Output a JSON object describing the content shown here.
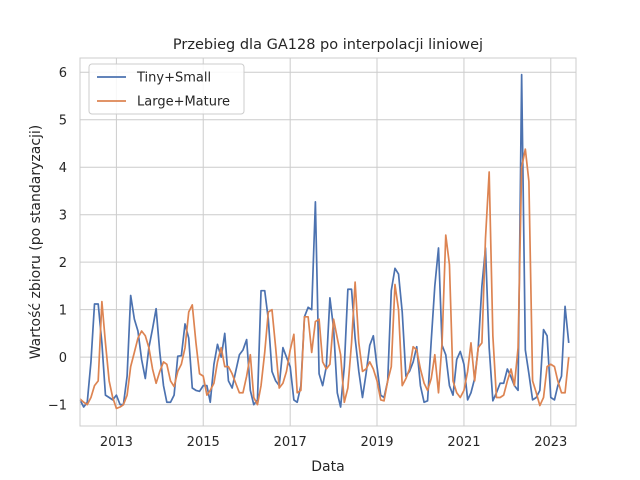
{
  "chart_data": {
    "type": "line",
    "title": "Przebieg dla GA128 po interpolacji liniowej",
    "xlabel": "Data",
    "ylabel": "Wartość zbioru (po standaryzacji)",
    "xlim": [
      "2012-03-01",
      "2023-08-01"
    ],
    "ylim": [
      -1.45,
      6.3
    ],
    "xticks": [
      {
        "value": "2013-01-01",
        "label": "2013"
      },
      {
        "value": "2015-01-01",
        "label": "2015"
      },
      {
        "value": "2017-01-01",
        "label": "2017"
      },
      {
        "value": "2019-01-01",
        "label": "2019"
      },
      {
        "value": "2021-01-01",
        "label": "2021"
      },
      {
        "value": "2023-01-01",
        "label": "2023"
      }
    ],
    "yticks": [
      -1,
      0,
      1,
      2,
      3,
      4,
      5,
      6
    ],
    "grid": true,
    "legend_position": "upper left",
    "series": [
      {
        "name": "Tiny+Small",
        "color": "#4c72b0",
        "points": [
          [
            "2012-03-01",
            -0.9
          ],
          [
            "2012-04-01",
            -1.05
          ],
          [
            "2012-05-01",
            -0.95
          ],
          [
            "2012-06-01",
            -0.1
          ],
          [
            "2012-07-01",
            1.12
          ],
          [
            "2012-08-01",
            1.12
          ],
          [
            "2012-09-01",
            0.3
          ],
          [
            "2012-10-01",
            -0.8
          ],
          [
            "2012-11-01",
            -0.85
          ],
          [
            "2012-12-01",
            -0.9
          ],
          [
            "2013-01-01",
            -0.8
          ],
          [
            "2013-02-01",
            -1.0
          ],
          [
            "2013-03-01",
            -1.0
          ],
          [
            "2013-04-01",
            -0.4
          ],
          [
            "2013-05-01",
            1.3
          ],
          [
            "2013-06-01",
            0.8
          ],
          [
            "2013-07-01",
            0.55
          ],
          [
            "2013-08-01",
            -0.05
          ],
          [
            "2013-09-01",
            -0.45
          ],
          [
            "2013-10-01",
            0.2
          ],
          [
            "2013-11-01",
            0.6
          ],
          [
            "2013-12-01",
            1.02
          ],
          [
            "2014-01-01",
            0.1
          ],
          [
            "2014-02-01",
            -0.6
          ],
          [
            "2014-03-01",
            -0.95
          ],
          [
            "2014-04-01",
            -0.95
          ],
          [
            "2014-05-01",
            -0.8
          ],
          [
            "2014-06-01",
            0.02
          ],
          [
            "2014-07-01",
            0.03
          ],
          [
            "2014-08-01",
            0.7
          ],
          [
            "2014-09-01",
            0.4
          ],
          [
            "2014-10-01",
            -0.65
          ],
          [
            "2014-11-01",
            -0.7
          ],
          [
            "2014-12-01",
            -0.72
          ],
          [
            "2015-01-01",
            -0.6
          ],
          [
            "2015-02-01",
            -0.6
          ],
          [
            "2015-03-01",
            -0.95
          ],
          [
            "2015-04-01",
            -0.15
          ],
          [
            "2015-05-01",
            0.27
          ],
          [
            "2015-06-01",
            0.0
          ],
          [
            "2015-07-01",
            0.5
          ],
          [
            "2015-08-01",
            -0.5
          ],
          [
            "2015-09-01",
            -0.65
          ],
          [
            "2015-10-01",
            -0.3
          ],
          [
            "2015-11-01",
            0.05
          ],
          [
            "2015-12-01",
            0.15
          ],
          [
            "2016-01-01",
            0.37
          ],
          [
            "2016-02-01",
            -0.7
          ],
          [
            "2016-03-01",
            -1.0
          ],
          [
            "2016-04-01",
            -0.9
          ],
          [
            "2016-05-01",
            1.4
          ],
          [
            "2016-06-01",
            1.4
          ],
          [
            "2016-07-01",
            0.8
          ],
          [
            "2016-08-01",
            -0.3
          ],
          [
            "2016-09-01",
            -0.5
          ],
          [
            "2016-10-01",
            -0.6
          ],
          [
            "2016-11-01",
            0.2
          ],
          [
            "2016-12-01",
            0.0
          ],
          [
            "2017-01-01",
            -0.2
          ],
          [
            "2017-02-01",
            -0.9
          ],
          [
            "2017-03-01",
            -0.95
          ],
          [
            "2017-04-01",
            -0.6
          ],
          [
            "2017-05-01",
            0.85
          ],
          [
            "2017-06-01",
            1.05
          ],
          [
            "2017-07-01",
            1.0
          ],
          [
            "2017-08-01",
            3.27
          ],
          [
            "2017-09-01",
            -0.35
          ],
          [
            "2017-10-01",
            -0.6
          ],
          [
            "2017-11-01",
            -0.2
          ],
          [
            "2017-12-01",
            1.25
          ],
          [
            "2018-01-01",
            0.6
          ],
          [
            "2018-02-01",
            -0.75
          ],
          [
            "2018-03-01",
            -1.05
          ],
          [
            "2018-04-01",
            -0.2
          ],
          [
            "2018-05-01",
            1.43
          ],
          [
            "2018-06-01",
            1.43
          ],
          [
            "2018-07-01",
            0.4
          ],
          [
            "2018-08-01",
            -0.3
          ],
          [
            "2018-09-01",
            -0.85
          ],
          [
            "2018-10-01",
            -0.35
          ],
          [
            "2018-11-01",
            0.25
          ],
          [
            "2018-12-01",
            0.45
          ],
          [
            "2019-01-01",
            -0.2
          ],
          [
            "2019-02-01",
            -0.8
          ],
          [
            "2019-03-01",
            -0.85
          ],
          [
            "2019-04-01",
            -0.5
          ],
          [
            "2019-05-01",
            1.4
          ],
          [
            "2019-06-01",
            1.87
          ],
          [
            "2019-07-01",
            1.75
          ],
          [
            "2019-08-01",
            0.95
          ],
          [
            "2019-09-01",
            -0.4
          ],
          [
            "2019-10-01",
            -0.3
          ],
          [
            "2019-11-01",
            -0.1
          ],
          [
            "2019-12-01",
            0.22
          ],
          [
            "2020-01-01",
            -0.6
          ],
          [
            "2020-02-01",
            -0.95
          ],
          [
            "2020-03-01",
            -0.92
          ],
          [
            "2020-04-01",
            0.35
          ],
          [
            "2020-05-01",
            1.5
          ],
          [
            "2020-06-01",
            2.3
          ],
          [
            "2020-07-01",
            0.25
          ],
          [
            "2020-08-01",
            0.05
          ],
          [
            "2020-09-01",
            -0.6
          ],
          [
            "2020-10-01",
            -0.8
          ],
          [
            "2020-11-01",
            -0.05
          ],
          [
            "2020-12-01",
            0.12
          ],
          [
            "2021-01-01",
            -0.15
          ],
          [
            "2021-02-01",
            -0.9
          ],
          [
            "2021-03-01",
            -0.75
          ],
          [
            "2021-04-01",
            -0.45
          ],
          [
            "2021-05-01",
            0.2
          ],
          [
            "2021-06-01",
            1.5
          ],
          [
            "2021-07-01",
            2.3
          ],
          [
            "2021-08-01",
            0.2
          ],
          [
            "2021-09-01",
            -0.92
          ],
          [
            "2021-10-01",
            -0.75
          ],
          [
            "2021-11-01",
            -0.55
          ],
          [
            "2021-12-01",
            -0.55
          ],
          [
            "2022-01-01",
            -0.25
          ],
          [
            "2022-02-01",
            -0.42
          ],
          [
            "2022-03-01",
            -0.6
          ],
          [
            "2022-04-01",
            -0.7
          ],
          [
            "2022-05-01",
            5.95
          ],
          [
            "2022-06-01",
            0.15
          ],
          [
            "2022-07-01",
            -0.35
          ],
          [
            "2022-08-01",
            -0.9
          ],
          [
            "2022-09-01",
            -0.85
          ],
          [
            "2022-10-01",
            -0.7
          ],
          [
            "2022-11-01",
            0.58
          ],
          [
            "2022-12-01",
            0.45
          ],
          [
            "2023-01-01",
            -0.85
          ],
          [
            "2023-02-01",
            -0.9
          ],
          [
            "2023-03-01",
            -0.6
          ],
          [
            "2023-04-01",
            -0.4
          ],
          [
            "2023-05-01",
            1.07
          ],
          [
            "2023-06-01",
            0.3
          ]
        ]
      },
      {
        "name": "Large+Mature",
        "color": "#dd8452",
        "points": [
          [
            "2012-03-01",
            -0.88
          ],
          [
            "2012-04-01",
            -0.95
          ],
          [
            "2012-05-01",
            -1.0
          ],
          [
            "2012-06-01",
            -0.85
          ],
          [
            "2012-07-01",
            -0.6
          ],
          [
            "2012-08-01",
            -0.5
          ],
          [
            "2012-09-01",
            1.17
          ],
          [
            "2012-10-01",
            0.3
          ],
          [
            "2012-11-01",
            -0.5
          ],
          [
            "2012-12-01",
            -0.85
          ],
          [
            "2013-01-01",
            -1.08
          ],
          [
            "2013-02-01",
            -1.05
          ],
          [
            "2013-03-01",
            -1.0
          ],
          [
            "2013-04-01",
            -0.8
          ],
          [
            "2013-05-01",
            -0.2
          ],
          [
            "2013-06-01",
            0.1
          ],
          [
            "2013-07-01",
            0.4
          ],
          [
            "2013-08-01",
            0.55
          ],
          [
            "2013-09-01",
            0.45
          ],
          [
            "2013-10-01",
            0.2
          ],
          [
            "2013-11-01",
            -0.25
          ],
          [
            "2013-12-01",
            -0.55
          ],
          [
            "2014-01-01",
            -0.3
          ],
          [
            "2014-02-01",
            -0.1
          ],
          [
            "2014-03-01",
            -0.15
          ],
          [
            "2014-04-01",
            -0.5
          ],
          [
            "2014-05-01",
            -0.62
          ],
          [
            "2014-06-01",
            -0.3
          ],
          [
            "2014-07-01",
            -0.15
          ],
          [
            "2014-08-01",
            0.2
          ],
          [
            "2014-09-01",
            0.95
          ],
          [
            "2014-10-01",
            1.1
          ],
          [
            "2014-11-01",
            0.3
          ],
          [
            "2014-12-01",
            -0.35
          ],
          [
            "2015-01-01",
            -0.4
          ],
          [
            "2015-02-01",
            -0.8
          ],
          [
            "2015-03-01",
            -0.7
          ],
          [
            "2015-04-01",
            -0.55
          ],
          [
            "2015-05-01",
            -0.1
          ],
          [
            "2015-06-01",
            0.2
          ],
          [
            "2015-07-01",
            -0.2
          ],
          [
            "2015-08-01",
            -0.2
          ],
          [
            "2015-09-01",
            -0.35
          ],
          [
            "2015-10-01",
            -0.55
          ],
          [
            "2015-11-01",
            -0.75
          ],
          [
            "2015-12-01",
            -0.75
          ],
          [
            "2016-01-01",
            -0.4
          ],
          [
            "2016-02-01",
            0.05
          ],
          [
            "2016-03-01",
            -0.85
          ],
          [
            "2016-04-01",
            -1.0
          ],
          [
            "2016-05-01",
            -0.6
          ],
          [
            "2016-06-01",
            0.1
          ],
          [
            "2016-07-01",
            0.95
          ],
          [
            "2016-08-01",
            1.0
          ],
          [
            "2016-09-01",
            0.2
          ],
          [
            "2016-10-01",
            -0.65
          ],
          [
            "2016-11-01",
            -0.55
          ],
          [
            "2016-12-01",
            -0.3
          ],
          [
            "2017-01-01",
            0.15
          ],
          [
            "2017-02-01",
            0.48
          ],
          [
            "2017-03-01",
            -0.75
          ],
          [
            "2017-04-01",
            -0.7
          ],
          [
            "2017-05-01",
            0.85
          ],
          [
            "2017-06-01",
            0.85
          ],
          [
            "2017-07-01",
            0.1
          ],
          [
            "2017-08-01",
            0.75
          ],
          [
            "2017-09-01",
            0.8
          ],
          [
            "2017-10-01",
            -0.1
          ],
          [
            "2017-11-01",
            -0.25
          ],
          [
            "2017-12-01",
            -0.15
          ],
          [
            "2018-01-01",
            0.8
          ],
          [
            "2018-02-01",
            0.4
          ],
          [
            "2018-03-01",
            0.05
          ],
          [
            "2018-04-01",
            -0.95
          ],
          [
            "2018-05-01",
            -0.65
          ],
          [
            "2018-06-01",
            0.3
          ],
          [
            "2018-07-01",
            1.58
          ],
          [
            "2018-08-01",
            0.3
          ],
          [
            "2018-09-01",
            -0.3
          ],
          [
            "2018-10-01",
            -0.25
          ],
          [
            "2018-11-01",
            -0.1
          ],
          [
            "2018-12-01",
            -0.25
          ],
          [
            "2019-01-01",
            -0.5
          ],
          [
            "2019-02-01",
            -0.9
          ],
          [
            "2019-03-01",
            -0.92
          ],
          [
            "2019-04-01",
            -0.5
          ],
          [
            "2019-05-01",
            -0.2
          ],
          [
            "2019-06-01",
            1.53
          ],
          [
            "2019-07-01",
            1.0
          ],
          [
            "2019-08-01",
            -0.6
          ],
          [
            "2019-09-01",
            -0.45
          ],
          [
            "2019-10-01",
            -0.25
          ],
          [
            "2019-11-01",
            0.22
          ],
          [
            "2019-12-01",
            0.15
          ],
          [
            "2020-01-01",
            -0.25
          ],
          [
            "2020-02-01",
            -0.55
          ],
          [
            "2020-03-01",
            -0.7
          ],
          [
            "2020-04-01",
            -0.45
          ],
          [
            "2020-05-01",
            0.05
          ],
          [
            "2020-06-01",
            -0.75
          ],
          [
            "2020-07-01",
            0.3
          ],
          [
            "2020-08-01",
            2.57
          ],
          [
            "2020-09-01",
            1.95
          ],
          [
            "2020-10-01",
            -0.5
          ],
          [
            "2020-11-01",
            -0.75
          ],
          [
            "2020-12-01",
            -0.85
          ],
          [
            "2021-01-01",
            -0.7
          ],
          [
            "2021-02-01",
            -0.3
          ],
          [
            "2021-03-01",
            0.3
          ],
          [
            "2021-04-01",
            -0.5
          ],
          [
            "2021-05-01",
            0.2
          ],
          [
            "2021-06-01",
            0.3
          ],
          [
            "2021-07-01",
            2.5
          ],
          [
            "2021-08-01",
            3.9
          ],
          [
            "2021-09-01",
            0.45
          ],
          [
            "2021-10-01",
            -0.85
          ],
          [
            "2021-11-01",
            -0.85
          ],
          [
            "2021-12-01",
            -0.8
          ],
          [
            "2022-01-01",
            -0.5
          ],
          [
            "2022-02-01",
            -0.25
          ],
          [
            "2022-03-01",
            -0.6
          ],
          [
            "2022-04-01",
            0.2
          ],
          [
            "2022-05-01",
            4.0
          ],
          [
            "2022-06-01",
            4.38
          ],
          [
            "2022-07-01",
            3.7
          ],
          [
            "2022-08-01",
            -0.5
          ],
          [
            "2022-09-01",
            -0.75
          ],
          [
            "2022-10-01",
            -1.02
          ],
          [
            "2022-11-01",
            -0.85
          ],
          [
            "2022-12-01",
            -0.2
          ],
          [
            "2023-01-01",
            -0.15
          ],
          [
            "2023-02-01",
            -0.2
          ],
          [
            "2023-03-01",
            -0.5
          ],
          [
            "2023-04-01",
            -0.75
          ],
          [
            "2023-05-01",
            -0.75
          ],
          [
            "2023-06-01",
            0.0
          ]
        ]
      }
    ]
  }
}
